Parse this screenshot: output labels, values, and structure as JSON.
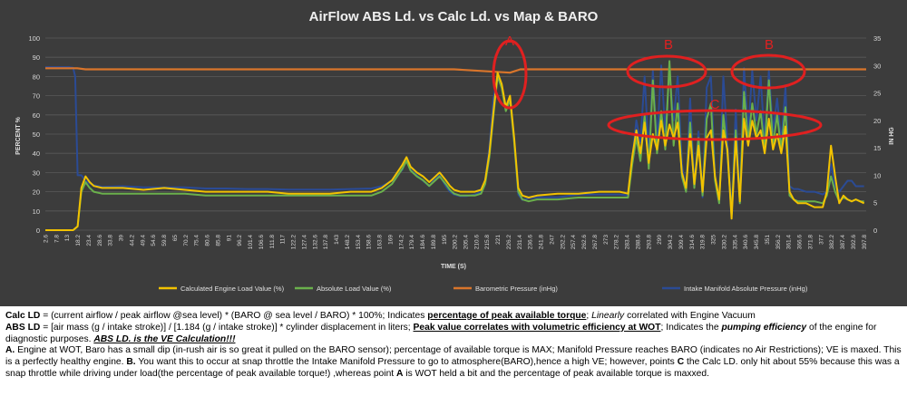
{
  "chart_data": {
    "type": "line",
    "title": "AirFlow ABS Ld. vs Calc Ld. vs Map & BARO",
    "xlabel": "TIME (S)",
    "ylabel_left": "PERCENT %",
    "ylabel_right": "IN HG",
    "ylim_left": [
      0,
      100
    ],
    "ylim_right": [
      0,
      35
    ],
    "yticks_left": [
      0,
      10,
      20,
      30,
      40,
      50,
      60,
      70,
      80,
      90,
      100
    ],
    "yticks_right": [
      0,
      5,
      10,
      15,
      20,
      25,
      30,
      35
    ],
    "xlim": [
      2.6,
      399
    ],
    "x_ticks": [
      "2.6",
      "7.8",
      "13",
      "18.2",
      "23.4",
      "28.6",
      "33.8",
      "39",
      "44.2",
      "49.4",
      "54.6",
      "59.8",
      "65",
      "70.2",
      "75.4",
      "80.6",
      "85.8",
      "91",
      "96.2",
      "101.4",
      "106.6",
      "111.8",
      "117",
      "122.2",
      "127.4",
      "132.6",
      "137.8",
      "143",
      "148.2",
      "153.4",
      "158.6",
      "163.8",
      "169",
      "174.2",
      "179.4",
      "184.6",
      "189.8",
      "195",
      "200.2",
      "205.4",
      "210.6",
      "215.8",
      "221",
      "226.2",
      "231.4",
      "236.6",
      "241.8",
      "247",
      "252.2",
      "257.4",
      "262.6",
      "267.8",
      "273",
      "278.2",
      "283.4",
      "288.6",
      "293.8",
      "299",
      "304.2",
      "309.4",
      "314.6",
      "319.8",
      "325",
      "330.2",
      "335.4",
      "340.6",
      "345.8",
      "351",
      "356.2",
      "361.4",
      "366.6",
      "371.8",
      "377",
      "382.2",
      "387.4",
      "392.6",
      "397.8"
    ],
    "legend_position": "bottom",
    "grid": true,
    "series": [
      {
        "name": "Calculated Engine Load Value (%)",
        "axis": "left",
        "color": "#f2c200",
        "x": [
          2.6,
          16,
          18.2,
          20,
          22,
          24,
          26,
          30,
          40,
          50,
          60,
          70,
          80,
          90,
          100,
          110,
          120,
          130,
          140,
          150,
          160,
          165,
          170,
          175,
          177,
          179,
          182,
          185,
          188,
          190,
          193,
          196,
          198,
          200,
          203,
          206,
          210,
          213,
          215,
          217,
          219,
          221,
          223,
          225,
          227,
          229,
          231,
          233,
          236,
          240,
          250,
          260,
          270,
          280,
          284,
          286,
          288,
          290,
          292,
          294,
          296,
          298,
          300,
          302,
          304,
          306,
          308,
          310,
          312,
          314,
          316,
          318,
          320,
          322,
          324,
          326,
          328,
          330,
          332,
          334,
          336,
          338,
          340,
          342,
          344,
          346,
          348,
          350,
          352,
          354,
          356,
          358,
          360,
          362,
          364,
          366,
          370,
          374,
          378,
          380,
          382,
          384,
          386,
          388,
          390,
          392,
          394,
          396,
          398
        ],
        "y": [
          0,
          0,
          2,
          22,
          28,
          25,
          23,
          22,
          22,
          21,
          22,
          21,
          20,
          20,
          20,
          20,
          19,
          19,
          19,
          20,
          20,
          22,
          26,
          34,
          38,
          33,
          30,
          28,
          25,
          27,
          30,
          26,
          23,
          21,
          20,
          20,
          20,
          21,
          26,
          40,
          62,
          82,
          76,
          64,
          70,
          48,
          22,
          18,
          17,
          18,
          19,
          19,
          20,
          20,
          19,
          38,
          52,
          40,
          56,
          35,
          50,
          42,
          57,
          44,
          55,
          48,
          56,
          30,
          22,
          50,
          24,
          44,
          20,
          48,
          52,
          28,
          16,
          52,
          42,
          6,
          48,
          15,
          58,
          44,
          57,
          48,
          52,
          40,
          58,
          42,
          50,
          40,
          54,
          20,
          16,
          14,
          14,
          12,
          12,
          20,
          44,
          28,
          14,
          18,
          16,
          15,
          16,
          15,
          14
        ]
      },
      {
        "name": "Absolute Load Value (%)",
        "axis": "left",
        "color": "#6ab04c",
        "x": [
          2.6,
          16,
          18.2,
          20,
          22,
          24,
          26,
          30,
          40,
          50,
          60,
          70,
          80,
          90,
          100,
          110,
          120,
          130,
          140,
          150,
          160,
          165,
          170,
          175,
          177,
          179,
          182,
          185,
          188,
          190,
          193,
          196,
          198,
          200,
          203,
          206,
          210,
          213,
          215,
          217,
          219,
          221,
          223,
          225,
          227,
          229,
          231,
          233,
          236,
          240,
          250,
          260,
          270,
          280,
          284,
          286,
          288,
          290,
          292,
          294,
          296,
          298,
          300,
          302,
          304,
          306,
          308,
          310,
          312,
          314,
          316,
          318,
          320,
          322,
          324,
          326,
          328,
          330,
          332,
          334,
          336,
          338,
          340,
          342,
          344,
          346,
          348,
          350,
          352,
          354,
          356,
          358,
          360,
          362,
          364,
          366,
          370,
          374,
          378,
          380,
          382,
          384,
          386,
          388,
          390,
          392,
          394,
          396,
          398
        ],
        "y": [
          0,
          0,
          2,
          20,
          25,
          22,
          20,
          19,
          19,
          19,
          19,
          19,
          18,
          18,
          18,
          18,
          18,
          18,
          18,
          18,
          18,
          20,
          24,
          32,
          36,
          31,
          28,
          26,
          23,
          25,
          28,
          24,
          21,
          19,
          18,
          18,
          18,
          19,
          24,
          38,
          60,
          80,
          74,
          62,
          68,
          46,
          20,
          16,
          15,
          16,
          16,
          17,
          17,
          17,
          17,
          34,
          48,
          36,
          60,
          32,
          78,
          40,
          62,
          42,
          88,
          44,
          66,
          28,
          20,
          56,
          22,
          48,
          18,
          58,
          66,
          26,
          14,
          60,
          40,
          8,
          52,
          14,
          72,
          46,
          66,
          50,
          62,
          42,
          78,
          44,
          60,
          42,
          64,
          18,
          16,
          15,
          15,
          15,
          14,
          18,
          28,
          20,
          15,
          17,
          16,
          15,
          16,
          15,
          15
        ]
      },
      {
        "name": "Barometric Pressure (inHg)",
        "axis": "right",
        "color": "#d9752b",
        "x": [
          2.6,
          18,
          22,
          100,
          200,
          227,
          232,
          300,
          399
        ],
        "y": [
          29.5,
          29.5,
          29.3,
          29.3,
          29.3,
          28.7,
          29.3,
          29.3,
          29.3
        ]
      },
      {
        "name": "Intake Manifold Absolute Pressure (inHg)",
        "axis": "right",
        "color": "#2b4b95",
        "x": [
          2.6,
          14,
          16,
          17,
          18.2,
          20,
          22,
          24,
          26,
          30,
          40,
          50,
          60,
          70,
          80,
          90,
          100,
          110,
          120,
          130,
          140,
          150,
          160,
          165,
          170,
          175,
          177,
          179,
          182,
          185,
          188,
          190,
          193,
          196,
          198,
          200,
          203,
          206,
          210,
          213,
          215,
          217,
          219,
          221,
          223,
          225,
          227,
          229,
          231,
          233,
          236,
          240,
          250,
          260,
          270,
          280,
          284,
          286,
          288,
          290,
          292,
          294,
          296,
          298,
          300,
          302,
          304,
          306,
          308,
          310,
          312,
          314,
          316,
          318,
          320,
          322,
          324,
          326,
          328,
          330,
          332,
          334,
          336,
          338,
          340,
          342,
          344,
          346,
          348,
          350,
          352,
          354,
          356,
          358,
          360,
          362,
          364,
          366,
          370,
          374,
          378,
          380,
          382,
          384,
          386,
          388,
          390,
          392,
          394,
          396,
          398
        ],
        "y": [
          29.7,
          29.7,
          29.6,
          28,
          10,
          10,
          9,
          8.5,
          8.2,
          7.9,
          8,
          7.8,
          7.8,
          7.8,
          7.6,
          7.6,
          7.5,
          7.5,
          7.4,
          7.4,
          7.4,
          7.5,
          7.6,
          8,
          9,
          11,
          13,
          11,
          10,
          9,
          8,
          9,
          10,
          8,
          7,
          6.5,
          6.2,
          6.2,
          6.5,
          7,
          9,
          15,
          24,
          28,
          26,
          22,
          24,
          16,
          6.5,
          5.5,
          5.8,
          6,
          6,
          6.5,
          6.5,
          6.5,
          6.3,
          13,
          20,
          16,
          28,
          14,
          29,
          16,
          30,
          18,
          29,
          20,
          28,
          12,
          7,
          24,
          8,
          18,
          6,
          26,
          28,
          10,
          5,
          28,
          16,
          3,
          22,
          5,
          29.5,
          18,
          29,
          20,
          28,
          16,
          29,
          18,
          24,
          16,
          26,
          8,
          7.5,
          7.5,
          7,
          7,
          6.5,
          7,
          12,
          8,
          7,
          8,
          9,
          9,
          8,
          8,
          8
        ]
      }
    ],
    "annotations": [
      "A",
      "B",
      "B",
      "C"
    ]
  },
  "notes": {
    "calc_ld": {
      "term": "Calc LD",
      "formula": " = (current airflow / peak airflow @sea level) * (BARO @ sea level / BARO) * 100%; Indicates ",
      "highlight": "percentage of peak available torque",
      "sep": "; ",
      "linearly": "Linearly",
      "rest": " correlated with Engine Vacuum"
    },
    "abs_ld": {
      "term": "ABS LD",
      "formula": " = [air mass (g / intake stroke)] / [1.184 (g / intake stroke)] * cylinder displacement in liters; ",
      "highlight": "Peak value correlates with volumetric efficiency at WOT",
      "mid": "; Indicates the ",
      "pumping": "pumping efficiency",
      "rest": " of the engine for diagnostic purposes. ",
      "ve": "ABS LD. is the VE Calculation!!!"
    },
    "para_a": {
      "label": "A.",
      "text_a": " Engine at WOT, Baro has a small dip (in-rush air is so great it pulled on the BARO sensor); percentage of available torque is MAX; Manifold Pressure reaches BARO (indicates no Air Restrictions); VE is maxed. This is a perfectly healthy engine. ",
      "label_b": "B.",
      "text_b": " You want this to occur at snap throttle the Intake Manifold Pressure to go to atmosphere(BARO),hence a high VE; however, points ",
      "label_c": "C",
      "text_c": " the Calc LD. only hit about 55% because this was a snap throttle while driving under load(the percentage of peak available torque!) ,whereas point ",
      "label_a2": "A",
      "text_d": " is WOT held a bit and the percentage of peak available torque is maxxed."
    }
  }
}
